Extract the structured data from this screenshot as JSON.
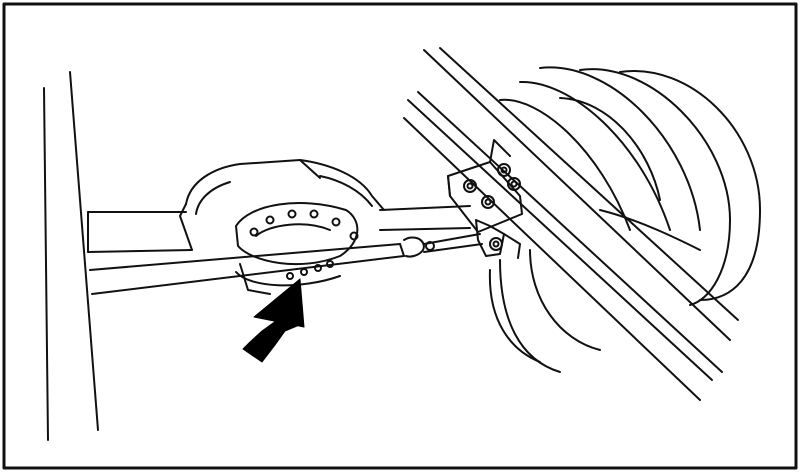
{
  "figure": {
    "colors": {
      "ink": "#111111",
      "paper": "#ffffff",
      "arrow": "#000000"
    },
    "icons": {
      "pointer": "arrow-icon"
    }
  }
}
